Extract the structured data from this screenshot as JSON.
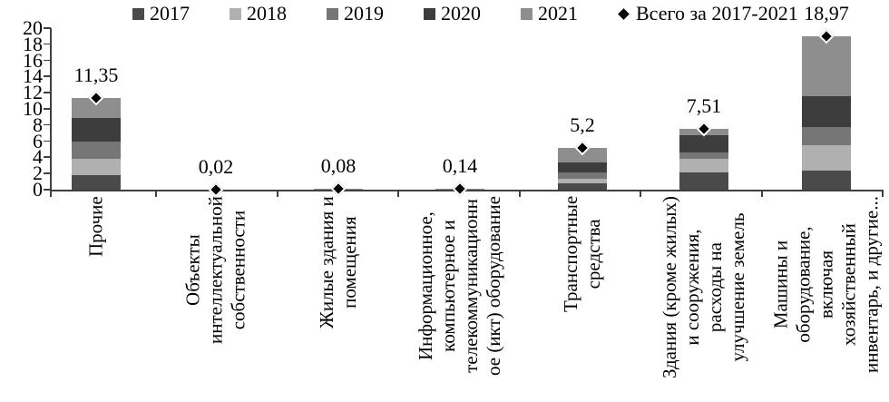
{
  "chart_data": {
    "type": "bar",
    "stacked": true,
    "grid": false,
    "legend_position": "top",
    "y_axis": {
      "min": 0,
      "max": 20,
      "step": 2,
      "ticks": [
        0,
        2,
        4,
        6,
        8,
        10,
        12,
        14,
        16,
        18,
        20
      ]
    },
    "categories": [
      "Прочие",
      "Объекты\nинтеллектуальной\nсобственности",
      "Жилые здания и\nпомещения",
      "Информационное,\nкомпьютерное и\nтелекоммуникационн\nое (икт) оборудование",
      "Транспортные\nсредства",
      "Здания (кроме жилых)\nи сооружения,\nрасходы на\nулучшение земель",
      "Машины и\nоборудование,\nвключая\nхозяйственный\nинвентарь, и другие..."
    ],
    "series": [
      {
        "name": "2017",
        "color": "#4a4a4a",
        "values": [
          1.76,
          0.004,
          0.016,
          0.028,
          0.75,
          2.14,
          2.36
        ]
      },
      {
        "name": "2018",
        "color": "#b0b0b0",
        "values": [
          2.06,
          0.004,
          0.016,
          0.028,
          0.6,
          1.69,
          3.15
        ]
      },
      {
        "name": "2019",
        "color": "#767676",
        "values": [
          2.13,
          0.004,
          0.016,
          0.028,
          0.82,
          0.75,
          2.25
        ]
      },
      {
        "name": "2020",
        "color": "#3d3d3d",
        "values": [
          2.92,
          0.004,
          0.016,
          0.028,
          1.24,
          2.13,
          3.82
        ]
      },
      {
        "name": "2021",
        "color": "#8e8e8e",
        "values": [
          2.48,
          0.004,
          0.016,
          0.028,
          1.79,
          0.8,
          7.39
        ]
      }
    ],
    "total_series": {
      "label": "Всего за 2017-2021",
      "marker": "diamond",
      "color": "#0a0a0a"
    },
    "totals": [
      11.35,
      0.02,
      0.08,
      0.14,
      5.2,
      7.51,
      18.97
    ],
    "total_labels": [
      "11,35",
      "0,02",
      "0,08",
      "0,14",
      "5,2",
      "7,51",
      "18,97"
    ]
  },
  "colors": {
    "axis": "#3f3f3f",
    "text": "#000000",
    "background": "#ffffff"
  }
}
